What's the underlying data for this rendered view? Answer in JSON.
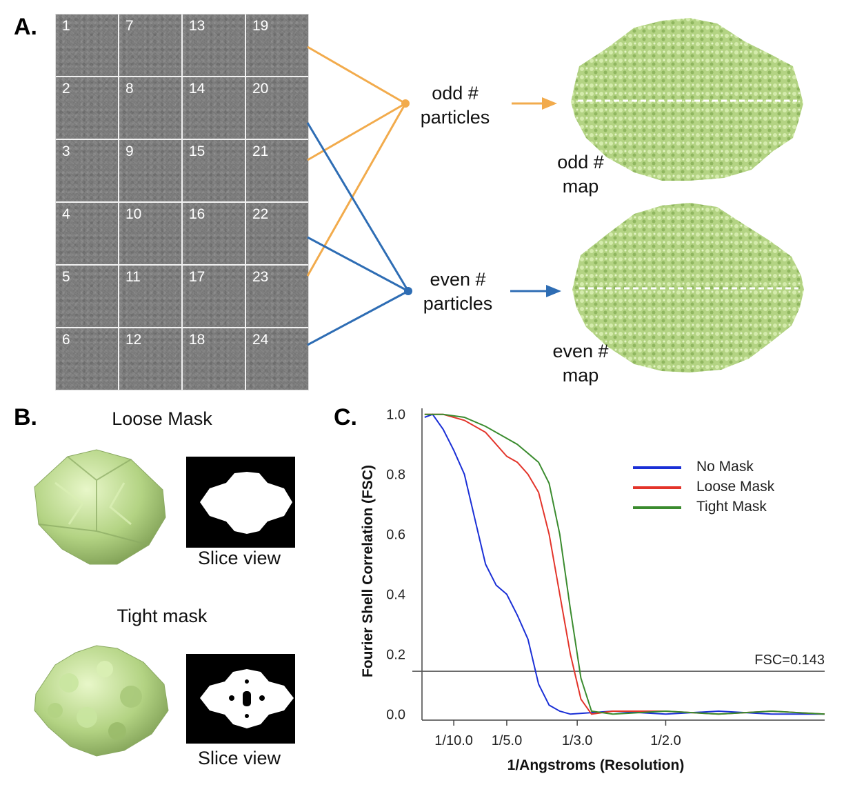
{
  "panels": {
    "a": "A.",
    "b": "B.",
    "c": "C."
  },
  "panel_a": {
    "tiles": [
      "1",
      "7",
      "13",
      "19",
      "2",
      "8",
      "14",
      "20",
      "3",
      "9",
      "15",
      "21",
      "4",
      "10",
      "16",
      "22",
      "5",
      "11",
      "17",
      "23",
      "6",
      "12",
      "18",
      "24"
    ],
    "odd_particles": [
      "odd #",
      "particles"
    ],
    "even_particles": [
      "even #",
      "particles"
    ],
    "odd_map": [
      "odd #",
      "map"
    ],
    "even_map": [
      "even #",
      "map"
    ],
    "colors": {
      "odd": "#f2ab4c",
      "even": "#2e6db4",
      "map_green": "#b3d383"
    }
  },
  "panel_b": {
    "loose_title": "Loose Mask",
    "tight_title": "Tight mask",
    "slice_view": "Slice view"
  },
  "chart_data": {
    "type": "line",
    "xlabel": "1/Angstroms (Resolution)",
    "ylabel": "Fourier Shell Correlation (FSC)",
    "x_ticks": [
      {
        "label": "1/10.0",
        "value": 0.1
      },
      {
        "label": "1/5.0",
        "value": 0.2
      },
      {
        "label": "1/3.0",
        "value": 0.333
      },
      {
        "label": "1/2.0",
        "value": 0.5
      }
    ],
    "y_ticks": [
      "0.0",
      "0.2",
      "0.4",
      "0.6",
      "0.8",
      "1.0"
    ],
    "xlim": [
      0.04,
      0.8
    ],
    "ylim": [
      -0.02,
      1.02
    ],
    "threshold": {
      "value": 0.143,
      "label": "FSC=0.143"
    },
    "legend_position": "top-right",
    "series": [
      {
        "name": "No Mask",
        "color": "#1a2fd6",
        "x": [
          0.045,
          0.06,
          0.08,
          0.1,
          0.12,
          0.14,
          0.16,
          0.18,
          0.2,
          0.22,
          0.24,
          0.26,
          0.28,
          0.3,
          0.32,
          0.4,
          0.5,
          0.6,
          0.7,
          0.8
        ],
        "y": [
          0.99,
          1.0,
          0.95,
          0.88,
          0.8,
          0.65,
          0.5,
          0.43,
          0.4,
          0.33,
          0.25,
          0.1,
          0.03,
          0.01,
          0.0,
          0.01,
          0.0,
          0.01,
          0.0,
          0.0
        ]
      },
      {
        "name": "Loose Mask",
        "color": "#e3342a",
        "x": [
          0.045,
          0.08,
          0.12,
          0.16,
          0.2,
          0.22,
          0.24,
          0.26,
          0.28,
          0.3,
          0.32,
          0.34,
          0.36,
          0.4,
          0.5,
          0.6,
          0.7,
          0.8
        ],
        "y": [
          1.0,
          1.0,
          0.98,
          0.94,
          0.86,
          0.84,
          0.8,
          0.74,
          0.6,
          0.4,
          0.2,
          0.05,
          0.0,
          0.01,
          0.01,
          0.0,
          0.01,
          0.0
        ]
      },
      {
        "name": "Tight Mask",
        "color": "#3a8b2e",
        "x": [
          0.045,
          0.08,
          0.12,
          0.16,
          0.2,
          0.22,
          0.24,
          0.26,
          0.28,
          0.3,
          0.32,
          0.34,
          0.36,
          0.4,
          0.5,
          0.6,
          0.7,
          0.8
        ],
        "y": [
          1.0,
          1.0,
          0.99,
          0.96,
          0.92,
          0.9,
          0.87,
          0.84,
          0.77,
          0.6,
          0.35,
          0.12,
          0.01,
          0.0,
          0.01,
          0.0,
          0.01,
          0.0
        ]
      }
    ]
  }
}
